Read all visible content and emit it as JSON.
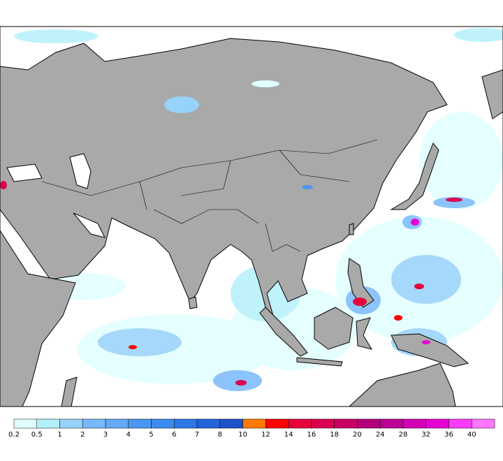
{
  "colorbar": {
    "levels": [
      0.2,
      0.5,
      1,
      2,
      3,
      4,
      5,
      6,
      7,
      8,
      10,
      12,
      14,
      16,
      18,
      20,
      24,
      28,
      32,
      36,
      40
    ],
    "colors": [
      "#e1ffff",
      "#b4f0fa",
      "#96d2fa",
      "#78b9fa",
      "#64aaf5",
      "#4b96f0",
      "#3c8cf0",
      "#2d78e6",
      "#2364dc",
      "#1e50c8",
      "#ff7800",
      "#ff0000",
      "#e6003c",
      "#dc0050",
      "#c80064",
      "#b40078",
      "#be0096",
      "#d200b4",
      "#e600d2",
      "#fa3cfa",
      "#ff78ff"
    ]
  }
}
